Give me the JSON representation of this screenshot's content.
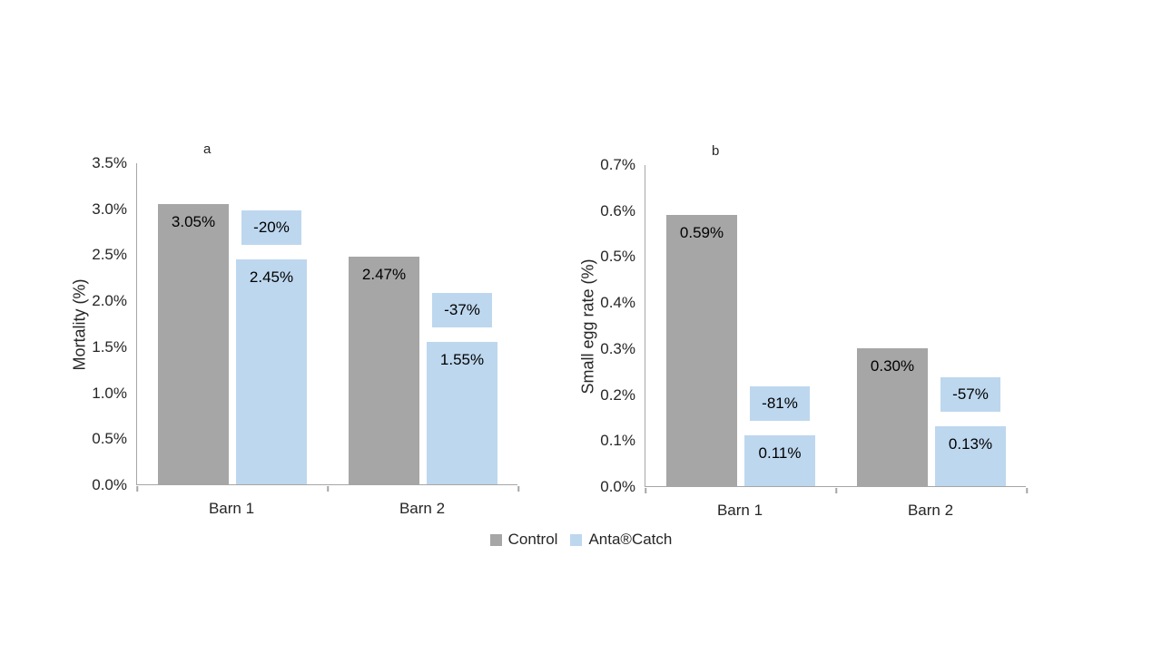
{
  "colors": {
    "control": "#a6a6a6",
    "anta_catch": "#bdd7ee",
    "axis": "#a6a6a6",
    "text": "#262626"
  },
  "legend": {
    "items": [
      {
        "label": "Control",
        "color": "#a6a6a6"
      },
      {
        "label": "Anta®Catch",
        "color": "#bdd7ee"
      }
    ]
  },
  "chart_data": [
    {
      "type": "bar",
      "panel_label": "a",
      "title": "",
      "xlabel": "",
      "ylabel": "Mortality (%)",
      "categories": [
        "Barn 1",
        "Barn 2"
      ],
      "ylim": [
        0,
        3.5
      ],
      "grid": false,
      "legend_position": "bottom",
      "ytick_labels": [
        "0.0%",
        "0.5%",
        "1.0%",
        "1.5%",
        "2.0%",
        "2.5%",
        "3.0%",
        "3.5%"
      ],
      "series": [
        {
          "name": "Control",
          "color": "#a6a6a6",
          "values": [
            3.05,
            2.47
          ],
          "value_labels": [
            "3.05%",
            "2.47%"
          ]
        },
        {
          "name": "Anta®Catch",
          "color": "#bdd7ee",
          "values": [
            2.45,
            1.55
          ],
          "value_labels": [
            "2.45%",
            "1.55%"
          ],
          "change_labels": [
            "-20%",
            "-37%"
          ]
        }
      ]
    },
    {
      "type": "bar",
      "panel_label": "b",
      "title": "",
      "xlabel": "",
      "ylabel": "Small egg rate (%)",
      "categories": [
        "Barn 1",
        "Barn 2"
      ],
      "ylim": [
        0,
        0.7
      ],
      "grid": false,
      "legend_position": "bottom",
      "ytick_labels": [
        "0.0%",
        "0.1%",
        "0.2%",
        "0.3%",
        "0.4%",
        "0.5%",
        "0.6%",
        "0.7%"
      ],
      "series": [
        {
          "name": "Control",
          "color": "#a6a6a6",
          "values": [
            0.59,
            0.3
          ],
          "value_labels": [
            "0.59%",
            "0.30%"
          ]
        },
        {
          "name": "Anta®Catch",
          "color": "#bdd7ee",
          "values": [
            0.11,
            0.13
          ],
          "value_labels": [
            "0.11%",
            "0.13%"
          ],
          "change_labels": [
            "-81%",
            "-57%"
          ]
        }
      ]
    }
  ]
}
